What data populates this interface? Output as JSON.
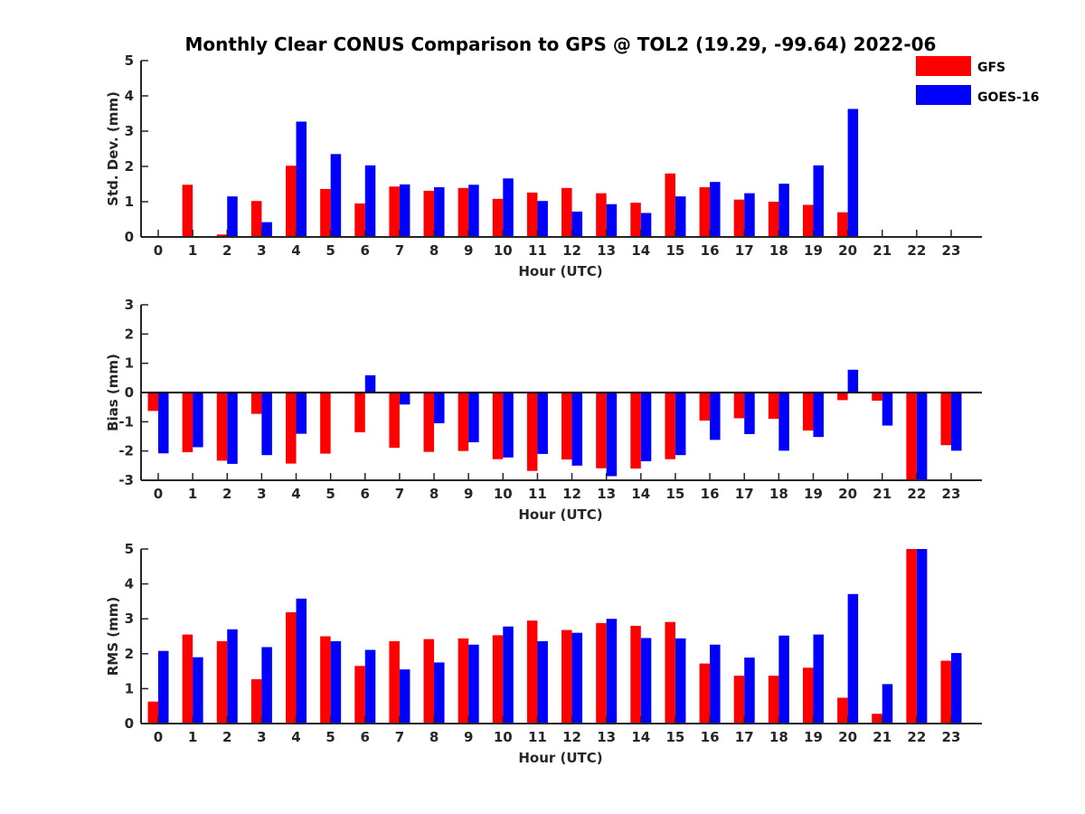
{
  "chart_data": {
    "title": "Monthly Clear CONUS Comparison to GPS @ TOL2 (19.29, -99.64) 2022-06",
    "legend": [
      {
        "name": "GFS",
        "color": "#ff0000"
      },
      {
        "name": "GOES-16",
        "color": "#0000ff"
      }
    ],
    "panels": [
      {
        "type": "bar",
        "ylabel": "Std. Dev. (mm)",
        "xlabel": "Hour (UTC)",
        "ylim": [
          0,
          5
        ],
        "yticks": [
          0,
          1,
          2,
          3,
          4,
          5
        ],
        "categories": [
          0,
          1,
          2,
          3,
          4,
          5,
          6,
          7,
          8,
          9,
          10,
          11,
          12,
          13,
          14,
          15,
          16,
          17,
          18,
          19,
          20,
          21,
          22,
          23
        ],
        "series": [
          {
            "name": "GFS",
            "color": "#ff0000",
            "values": [
              0,
              1.48,
              0.07,
              1.02,
              2.02,
              1.36,
              0.95,
              1.43,
              1.31,
              1.39,
              1.08,
              1.26,
              1.39,
              1.24,
              0.97,
              1.8,
              1.41,
              1.06,
              1.0,
              0.91,
              0.7,
              0,
              0,
              0
            ]
          },
          {
            "name": "GOES-16",
            "color": "#0000ff",
            "values": [
              0,
              0,
              1.15,
              0.42,
              3.27,
              2.35,
              2.03,
              1.49,
              1.41,
              1.48,
              1.66,
              1.02,
              0.72,
              0.93,
              0.68,
              1.15,
              1.56,
              1.24,
              1.51,
              2.03,
              3.63,
              0,
              0,
              0
            ]
          }
        ]
      },
      {
        "type": "bar",
        "ylabel": "Bias (mm)",
        "xlabel": "Hour (UTC)",
        "ylim": [
          -3,
          3
        ],
        "yticks": [
          -3,
          -2,
          -1,
          0,
          1,
          2,
          3
        ],
        "categories": [
          0,
          1,
          2,
          3,
          4,
          5,
          6,
          7,
          8,
          9,
          10,
          11,
          12,
          13,
          14,
          15,
          16,
          17,
          18,
          19,
          20,
          21,
          22,
          23
        ],
        "series": [
          {
            "name": "GFS",
            "color": "#ff0000",
            "values": [
              -0.63,
              -2.04,
              -2.33,
              -0.73,
              -2.43,
              -2.09,
              -1.36,
              -1.89,
              -2.03,
              -2.0,
              -2.28,
              -2.68,
              -2.29,
              -2.59,
              -2.6,
              -2.28,
              -0.96,
              -0.88,
              -0.9,
              -1.3,
              -0.26,
              -0.28,
              -3.0,
              -1.8
            ]
          },
          {
            "name": "GOES-16",
            "color": "#0000ff",
            "values": [
              -2.08,
              -1.87,
              -2.44,
              -2.14,
              -1.41,
              0,
              0.59,
              -0.41,
              -1.05,
              -1.7,
              -2.22,
              -2.1,
              -2.5,
              -2.86,
              -2.35,
              -2.14,
              -1.62,
              -1.42,
              -1.99,
              -1.52,
              0.78,
              -1.13,
              -3.0,
              -1.99
            ]
          }
        ]
      },
      {
        "type": "bar",
        "ylabel": "RMS (mm)",
        "xlabel": "Hour (UTC)",
        "ylim": [
          0,
          5
        ],
        "yticks": [
          0,
          1,
          2,
          3,
          4,
          5
        ],
        "categories": [
          0,
          1,
          2,
          3,
          4,
          5,
          6,
          7,
          8,
          9,
          10,
          11,
          12,
          13,
          14,
          15,
          16,
          17,
          18,
          19,
          20,
          21,
          22,
          23
        ],
        "series": [
          {
            "name": "GFS",
            "color": "#ff0000",
            "values": [
              0.63,
              2.55,
              2.36,
              1.27,
              3.19,
              2.5,
              1.65,
              2.36,
              2.42,
              2.44,
              2.53,
              2.95,
              2.68,
              2.88,
              2.8,
              2.91,
              1.72,
              1.37,
              1.37,
              1.6,
              0.74,
              0.28,
              5.0,
              1.8
            ]
          },
          {
            "name": "GOES-16",
            "color": "#0000ff",
            "values": [
              2.08,
              1.9,
              2.7,
              2.19,
              3.58,
              2.36,
              2.11,
              1.55,
              1.75,
              2.26,
              2.78,
              2.36,
              2.6,
              3.0,
              2.45,
              2.44,
              2.26,
              1.89,
              2.52,
              2.55,
              3.71,
              1.13,
              5.0,
              2.02
            ]
          }
        ]
      }
    ]
  }
}
